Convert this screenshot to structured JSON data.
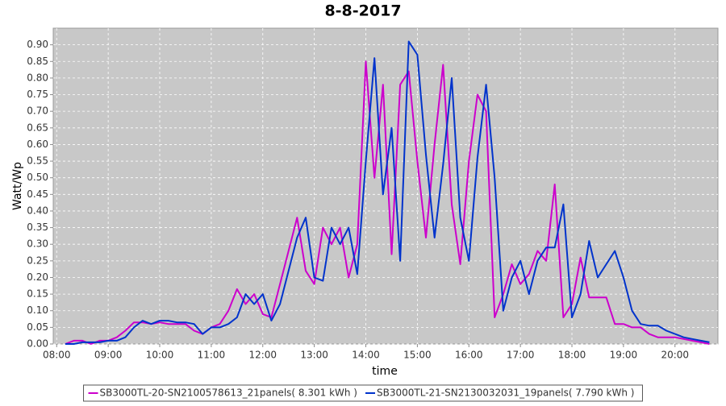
{
  "chart_data": {
    "type": "line",
    "title": "8-8-2017",
    "xlabel": "time",
    "ylabel": "Watt/Wp",
    "x": [
      "08:10",
      "08:20",
      "08:30",
      "08:40",
      "08:50",
      "09:00",
      "09:10",
      "09:20",
      "09:30",
      "09:40",
      "09:50",
      "10:00",
      "10:10",
      "10:20",
      "10:30",
      "10:40",
      "10:50",
      "11:00",
      "11:10",
      "11:20",
      "11:30",
      "11:40",
      "11:50",
      "12:00",
      "12:10",
      "12:20",
      "12:30",
      "12:40",
      "12:50",
      "13:00",
      "13:10",
      "13:20",
      "13:30",
      "13:40",
      "13:50",
      "14:00",
      "14:10",
      "14:20",
      "14:30",
      "14:40",
      "14:50",
      "15:00",
      "15:10",
      "15:20",
      "15:30",
      "15:40",
      "15:50",
      "16:00",
      "16:10",
      "16:20",
      "16:30",
      "16:40",
      "16:50",
      "17:00",
      "17:10",
      "17:20",
      "17:30",
      "17:40",
      "17:50",
      "18:00",
      "18:10",
      "18:20",
      "18:30",
      "18:40",
      "18:50",
      "19:00",
      "19:10",
      "19:20",
      "19:30",
      "19:40",
      "19:50",
      "20:00",
      "20:10",
      "20:20",
      "20:30",
      "20:40"
    ],
    "series": [
      {
        "name": "SB3000TL-20-SN2100578613_21panels( 8.301 kWh )",
        "color": "#cc00cc",
        "values": [
          0.0,
          0.01,
          0.01,
          0.0,
          0.01,
          0.01,
          0.02,
          0.04,
          0.065,
          0.065,
          0.06,
          0.065,
          0.06,
          0.06,
          0.06,
          0.04,
          0.03,
          0.05,
          0.06,
          0.1,
          0.165,
          0.12,
          0.15,
          0.09,
          0.08,
          0.18,
          0.28,
          0.38,
          0.22,
          0.18,
          0.35,
          0.3,
          0.35,
          0.2,
          0.3,
          0.85,
          0.5,
          0.78,
          0.27,
          0.78,
          0.82,
          0.55,
          0.32,
          0.6,
          0.84,
          0.42,
          0.24,
          0.55,
          0.75,
          0.7,
          0.08,
          0.15,
          0.24,
          0.18,
          0.21,
          0.28,
          0.25,
          0.48,
          0.08,
          0.12,
          0.26,
          0.14,
          0.14,
          0.14,
          0.06,
          0.06,
          0.05,
          0.05,
          0.03,
          0.02,
          0.02,
          0.02,
          0.015,
          0.01,
          0.005,
          0.0
        ]
      },
      {
        "name": "SB3000TL-21-SN2130032031_19panels( 7.790 kWh )",
        "color": "#0033cc",
        "values": [
          0.0,
          0.0,
          0.005,
          0.005,
          0.005,
          0.01,
          0.01,
          0.02,
          0.05,
          0.07,
          0.06,
          0.07,
          0.07,
          0.065,
          0.065,
          0.06,
          0.03,
          0.05,
          0.05,
          0.06,
          0.08,
          0.15,
          0.12,
          0.15,
          0.07,
          0.12,
          0.22,
          0.32,
          0.38,
          0.2,
          0.19,
          0.35,
          0.3,
          0.35,
          0.21,
          0.55,
          0.86,
          0.45,
          0.65,
          0.25,
          0.91,
          0.87,
          0.57,
          0.32,
          0.54,
          0.8,
          0.38,
          0.25,
          0.56,
          0.78,
          0.5,
          0.1,
          0.2,
          0.25,
          0.15,
          0.25,
          0.29,
          0.29,
          0.42,
          0.08,
          0.15,
          0.31,
          0.2,
          0.24,
          0.28,
          0.2,
          0.1,
          0.06,
          0.055,
          0.055,
          0.04,
          0.03,
          0.02,
          0.015,
          0.01,
          0.005
        ]
      }
    ],
    "xlim": [
      "07:56",
      "20:50"
    ],
    "xticks": [
      "08:00",
      "09:00",
      "10:00",
      "11:00",
      "12:00",
      "13:00",
      "14:00",
      "15:00",
      "16:00",
      "17:00",
      "18:00",
      "19:00",
      "20:00"
    ],
    "ylim": [
      0,
      0.95
    ],
    "yticks": [
      {
        "value": 0,
        "label": "0.00"
      },
      0.05,
      {
        "value": 0.1,
        "label": "0.10"
      },
      0.15,
      {
        "value": 0.2,
        "label": "0.20"
      },
      0.25,
      {
        "value": 0.3,
        "label": "0.30"
      },
      0.35,
      {
        "value": 0.4,
        "label": "0.40"
      },
      0.45,
      {
        "value": 0.5,
        "label": "0.50"
      },
      0.55,
      {
        "value": 0.6,
        "label": "0.60"
      },
      0.65,
      {
        "value": 0.7,
        "label": "0.70"
      },
      0.75,
      {
        "value": 0.8,
        "label": "0.80"
      },
      0.85,
      {
        "value": 0.9,
        "label": "0.90"
      }
    ],
    "grid": true,
    "legend": "bottom"
  }
}
